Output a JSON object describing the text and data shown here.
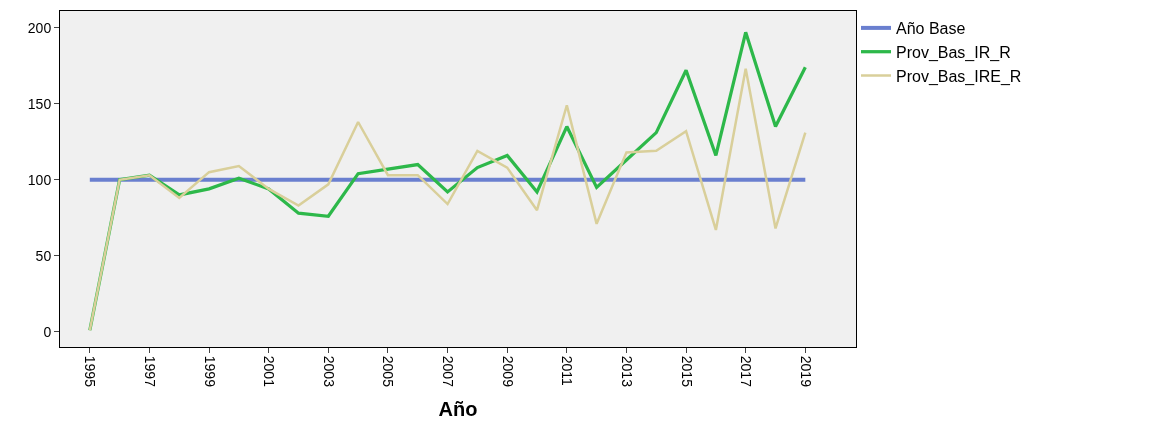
{
  "chart_data": {
    "type": "line",
    "xlabel": "Año",
    "x": [
      1995,
      1996,
      1997,
      1998,
      1999,
      2000,
      2001,
      2002,
      2003,
      2004,
      2005,
      2006,
      2007,
      2008,
      2009,
      2010,
      2011,
      2012,
      2013,
      2014,
      2015,
      2016,
      2017,
      2018,
      2019
    ],
    "series": [
      {
        "name": "Año Base",
        "color": "#6a7fcf",
        "values": [
          100,
          100,
          100,
          100,
          100,
          100,
          100,
          100,
          100,
          100,
          100,
          100,
          100,
          100,
          100,
          100,
          100,
          100,
          100,
          100,
          100,
          100,
          100,
          100,
          100
        ]
      },
      {
        "name": "Prov_Bas_IR_R",
        "color": "#2db84a",
        "values": [
          1,
          100,
          103,
          90,
          94,
          101,
          94,
          78,
          76,
          104,
          107,
          110,
          92,
          108,
          116,
          92,
          135,
          95,
          113,
          131,
          172,
          116,
          197,
          135,
          174
        ]
      },
      {
        "name": "Prov_Bas_IRE_R",
        "color": "#d9cf9a",
        "values": [
          1,
          100,
          103,
          88,
          105,
          109,
          94,
          83,
          97,
          138,
          103,
          103,
          84,
          119,
          108,
          80,
          149,
          71,
          118,
          119,
          132,
          67,
          173,
          68,
          131
        ]
      }
    ],
    "xlim": [
      1994,
      2020.7
    ],
    "ylim": [
      -10,
      211
    ],
    "xticks": [
      1995,
      1997,
      1999,
      2001,
      2003,
      2005,
      2007,
      2009,
      2011,
      2013,
      2015,
      2017,
      2019
    ],
    "yticks": [
      0,
      50,
      100,
      150,
      200
    ],
    "grid": false,
    "legend": "top right",
    "marker": "none",
    "line_style": "solid"
  }
}
